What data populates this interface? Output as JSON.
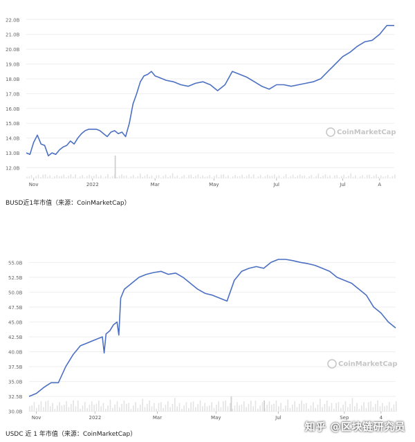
{
  "chart_data": [
    {
      "type": "line",
      "caption": "BUSD近1年市值（来源：CoinMarketCap）",
      "watermark": "CoinMarketCap",
      "y_ticks": [
        "12.0B",
        "13.0B",
        "14.0B",
        "15.0B",
        "16.0B",
        "17.0B",
        "18.0B",
        "19.0B",
        "20.0B",
        "21.0B",
        "22.0B"
      ],
      "ylim": [
        11.6,
        22.2
      ],
      "x_ticks": [
        {
          "label": "Nov",
          "x": 0.02
        },
        {
          "label": "2022",
          "x": 0.18
        },
        {
          "label": "Mar",
          "x": 0.35
        },
        {
          "label": "May",
          "x": 0.51
        },
        {
          "label": "Jul",
          "x": 0.68
        },
        {
          "label": "Jul",
          "x": 0.86
        },
        {
          "label": "A",
          "x": 0.96
        }
      ],
      "series": [
        {
          "color": "#4a6fc3",
          "x": [
            0.0,
            0.01,
            0.02,
            0.03,
            0.04,
            0.05,
            0.06,
            0.07,
            0.08,
            0.09,
            0.1,
            0.11,
            0.12,
            0.13,
            0.14,
            0.15,
            0.16,
            0.17,
            0.18,
            0.19,
            0.2,
            0.21,
            0.22,
            0.23,
            0.24,
            0.25,
            0.26,
            0.27,
            0.28,
            0.29,
            0.3,
            0.31,
            0.32,
            0.33,
            0.34,
            0.35,
            0.36,
            0.38,
            0.4,
            0.42,
            0.44,
            0.46,
            0.48,
            0.5,
            0.52,
            0.54,
            0.56,
            0.58,
            0.6,
            0.62,
            0.64,
            0.66,
            0.68,
            0.7,
            0.72,
            0.74,
            0.76,
            0.78,
            0.8,
            0.82,
            0.84,
            0.86,
            0.88,
            0.9,
            0.92,
            0.94,
            0.96,
            0.98,
            1.0
          ],
          "values": [
            13.0,
            12.9,
            13.7,
            14.2,
            13.6,
            13.5,
            12.8,
            13.0,
            12.9,
            13.2,
            13.4,
            13.5,
            13.8,
            13.6,
            14.0,
            14.3,
            14.5,
            14.6,
            14.6,
            14.6,
            14.5,
            14.3,
            14.1,
            14.4,
            14.5,
            14.3,
            14.4,
            14.1,
            15.0,
            16.3,
            17.0,
            17.8,
            18.2,
            18.3,
            18.5,
            18.2,
            18.1,
            17.9,
            17.8,
            17.6,
            17.5,
            17.7,
            17.8,
            17.6,
            17.2,
            17.6,
            18.5,
            18.3,
            18.1,
            17.8,
            17.5,
            17.3,
            17.6,
            17.6,
            17.5,
            17.6,
            17.7,
            17.8,
            18.0,
            18.5,
            19.0,
            19.5,
            19.8,
            20.2,
            20.5,
            20.6,
            21.0,
            21.6,
            21.6
          ]
        }
      ]
    },
    {
      "type": "line",
      "caption": "USDC 近 1 年市值（来源：CoinMarketCap）",
      "watermark": "CoinMarketCap",
      "y_ticks": [
        "30.0B",
        "32.5B",
        "35.0B",
        "37.5B",
        "40.0B",
        "42.5B",
        "45.0B",
        "47.5B",
        "50.0B",
        "52.5B",
        "55.0B"
      ],
      "ylim": [
        28.8,
        56.2
      ],
      "x_ticks": [
        {
          "label": "Nov",
          "x": 0.02
        },
        {
          "label": "2022",
          "x": 0.18
        },
        {
          "label": "Mar",
          "x": 0.35
        },
        {
          "label": "May",
          "x": 0.51
        },
        {
          "label": "Jul",
          "x": 0.68
        },
        {
          "label": "Sep",
          "x": 0.86
        },
        {
          "label": "4",
          "x": 0.96
        }
      ],
      "series": [
        {
          "color": "#4a6fc3",
          "x": [
            0.0,
            0.02,
            0.04,
            0.06,
            0.08,
            0.1,
            0.12,
            0.14,
            0.16,
            0.18,
            0.2,
            0.205,
            0.21,
            0.22,
            0.23,
            0.24,
            0.245,
            0.25,
            0.26,
            0.28,
            0.3,
            0.32,
            0.34,
            0.36,
            0.38,
            0.4,
            0.42,
            0.44,
            0.46,
            0.48,
            0.5,
            0.52,
            0.54,
            0.56,
            0.58,
            0.6,
            0.62,
            0.64,
            0.66,
            0.68,
            0.7,
            0.72,
            0.74,
            0.76,
            0.78,
            0.8,
            0.82,
            0.84,
            0.86,
            0.88,
            0.9,
            0.92,
            0.94,
            0.96,
            0.98,
            1.0
          ],
          "values": [
            32.5,
            33.0,
            34.0,
            34.8,
            34.8,
            37.5,
            39.5,
            41.0,
            41.5,
            42.0,
            42.5,
            39.8,
            43.0,
            43.5,
            44.5,
            45.0,
            42.8,
            49.0,
            50.5,
            51.5,
            52.5,
            53.0,
            53.3,
            53.5,
            53.0,
            53.2,
            52.5,
            51.5,
            50.5,
            49.8,
            49.5,
            49.0,
            48.5,
            52.0,
            53.5,
            54.0,
            54.3,
            54.0,
            55.0,
            55.5,
            55.5,
            55.3,
            55.0,
            54.8,
            54.5,
            54.0,
            53.5,
            52.5,
            52.0,
            51.5,
            50.5,
            49.5,
            47.5,
            46.5,
            45.0,
            44.0
          ]
        }
      ]
    }
  ],
  "footer_watermark": "知乎 @区块链研究员"
}
